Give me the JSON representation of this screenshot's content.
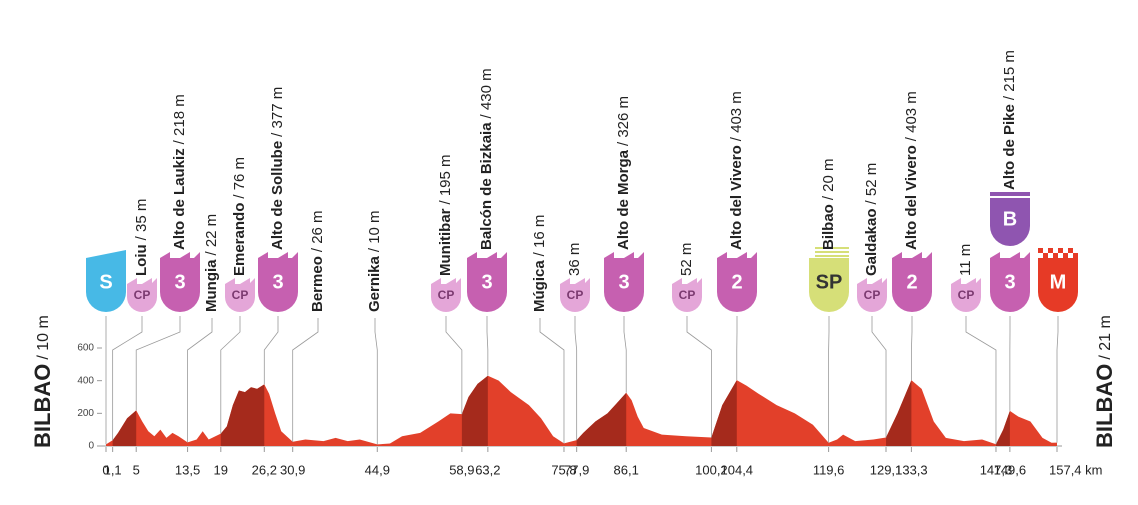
{
  "chart_data": {
    "type": "area",
    "color": "#e2402a",
    "climb_color": "#a52a1c",
    "xlim": [
      0,
      157.4
    ],
    "ylim": [
      0,
      600
    ],
    "yticks": [
      0,
      200,
      400,
      600
    ],
    "xticks": [
      0,
      {
        "value": 1.1,
        "label": "1,1"
      },
      5,
      {
        "value": 13.5,
        "label": "13,5"
      },
      19,
      {
        "value": 26.2,
        "label": "26,2"
      },
      {
        "value": 30.9,
        "label": "30,9"
      },
      {
        "value": 44.9,
        "label": "44,9"
      },
      {
        "value": 58.9,
        "label": "58,9"
      },
      {
        "value": 63.2,
        "label": "63,2"
      },
      {
        "value": 75.8,
        "label": "75,8"
      },
      {
        "value": 77.9,
        "label": "77,9"
      },
      {
        "value": 86.1,
        "label": "86,1"
      },
      {
        "value": 100.2,
        "label": "100,2"
      },
      {
        "value": 104.4,
        "label": "104,4"
      },
      {
        "value": 119.6,
        "label": "119,6"
      },
      {
        "value": 129.1,
        "label": "129,1"
      },
      {
        "value": 133.3,
        "label": "133,3"
      },
      {
        "value": 147.3,
        "label": "147,3"
      },
      {
        "value": 149.6,
        "label": "149,6"
      },
      {
        "value": 157.4,
        "label": "157,4 km"
      }
    ],
    "start": {
      "name": "BILBAO",
      "alt": "/ 10 m"
    },
    "finish": {
      "name": "BILBAO",
      "alt": "/ 21 m"
    },
    "waypoints": [
      {
        "badge": "S"
      },
      {
        "name": "Loiu",
        "alt": "/ 35 m",
        "badge": "CP"
      },
      {
        "name": "Alto de Laukiz",
        "alt": "/ 218 m",
        "badge": "3"
      },
      {
        "name": "Mungia",
        "alt": "/ 22 m"
      },
      {
        "name": "Emerando",
        "alt": "/ 76 m",
        "badge": "CP"
      },
      {
        "name": "Alto de Sollube",
        "alt": "/ 377 m",
        "badge": "3"
      },
      {
        "name": "Bermeo",
        "alt": "/ 26 m"
      },
      {
        "name": "Gernika",
        "alt": "/ 10 m"
      },
      {
        "name": "Munitibar",
        "alt": "/ 195 m",
        "badge": "CP"
      },
      {
        "name": "Balcón de Bizkaia",
        "alt": "/ 430 m",
        "badge": "3"
      },
      {
        "name": "Múgica",
        "alt": "/ 16 m"
      },
      {
        "alt": "36 m",
        "badge": "CP"
      },
      {
        "name": "Alto de Morga",
        "alt": "/ 326 m",
        "badge": "3"
      },
      {
        "alt": "52 m",
        "badge": "CP"
      },
      {
        "name": "Alto del Vivero",
        "alt": "/ 403 m",
        "badge": "2"
      },
      {
        "name": "Bilbao",
        "alt": "/ 20 m",
        "badge": "SP"
      },
      {
        "name": "Galdakao",
        "alt": "/ 52 m",
        "badge": "CP"
      },
      {
        "name": "Alto del Vivero",
        "alt": "/ 403 m",
        "badge": "2"
      },
      {
        "alt": "11 m",
        "badge": "CP"
      },
      {
        "name": "Alto de Pike",
        "alt": "/ 215 m",
        "badge": "3",
        "bonus": "B"
      },
      {
        "badge": "M"
      }
    ],
    "x": [
      0,
      1.1,
      2,
      3.5,
      5,
      6,
      7,
      8,
      9,
      10,
      11,
      12,
      13.5,
      15,
      16,
      17,
      19,
      20,
      21,
      22,
      23,
      24,
      25,
      26.2,
      27,
      28,
      29,
      30.9,
      33,
      36,
      38,
      40,
      42,
      44.9,
      47,
      49,
      52,
      55,
      57,
      58.9,
      60,
      61.5,
      63.2,
      65,
      67,
      70,
      72,
      74,
      75.8,
      77.9,
      79,
      81,
      83,
      84.5,
      86.1,
      87,
      88,
      89,
      92,
      96,
      100.2,
      102,
      104.4,
      106,
      108,
      111,
      114,
      117,
      119.6,
      121,
      122,
      124,
      127,
      129.1,
      131,
      133.3,
      135,
      137,
      139,
      142,
      145,
      147.3,
      148.5,
      149.6,
      151,
      153,
      155,
      156.5,
      157.4
    ],
    "values": [
      10,
      35,
      80,
      170,
      218,
      150,
      90,
      60,
      100,
      50,
      80,
      60,
      22,
      40,
      90,
      40,
      76,
      120,
      250,
      340,
      330,
      360,
      350,
      377,
      320,
      200,
      90,
      26,
      40,
      30,
      50,
      30,
      40,
      10,
      15,
      60,
      80,
      150,
      200,
      195,
      300,
      380,
      430,
      400,
      330,
      250,
      170,
      60,
      16,
      36,
      80,
      150,
      200,
      260,
      326,
      280,
      180,
      110,
      70,
      60,
      52,
      250,
      403,
      370,
      320,
      250,
      200,
      130,
      20,
      40,
      70,
      30,
      40,
      52,
      200,
      403,
      350,
      150,
      50,
      30,
      40,
      11,
      100,
      215,
      180,
      150,
      50,
      20,
      21
    ]
  }
}
